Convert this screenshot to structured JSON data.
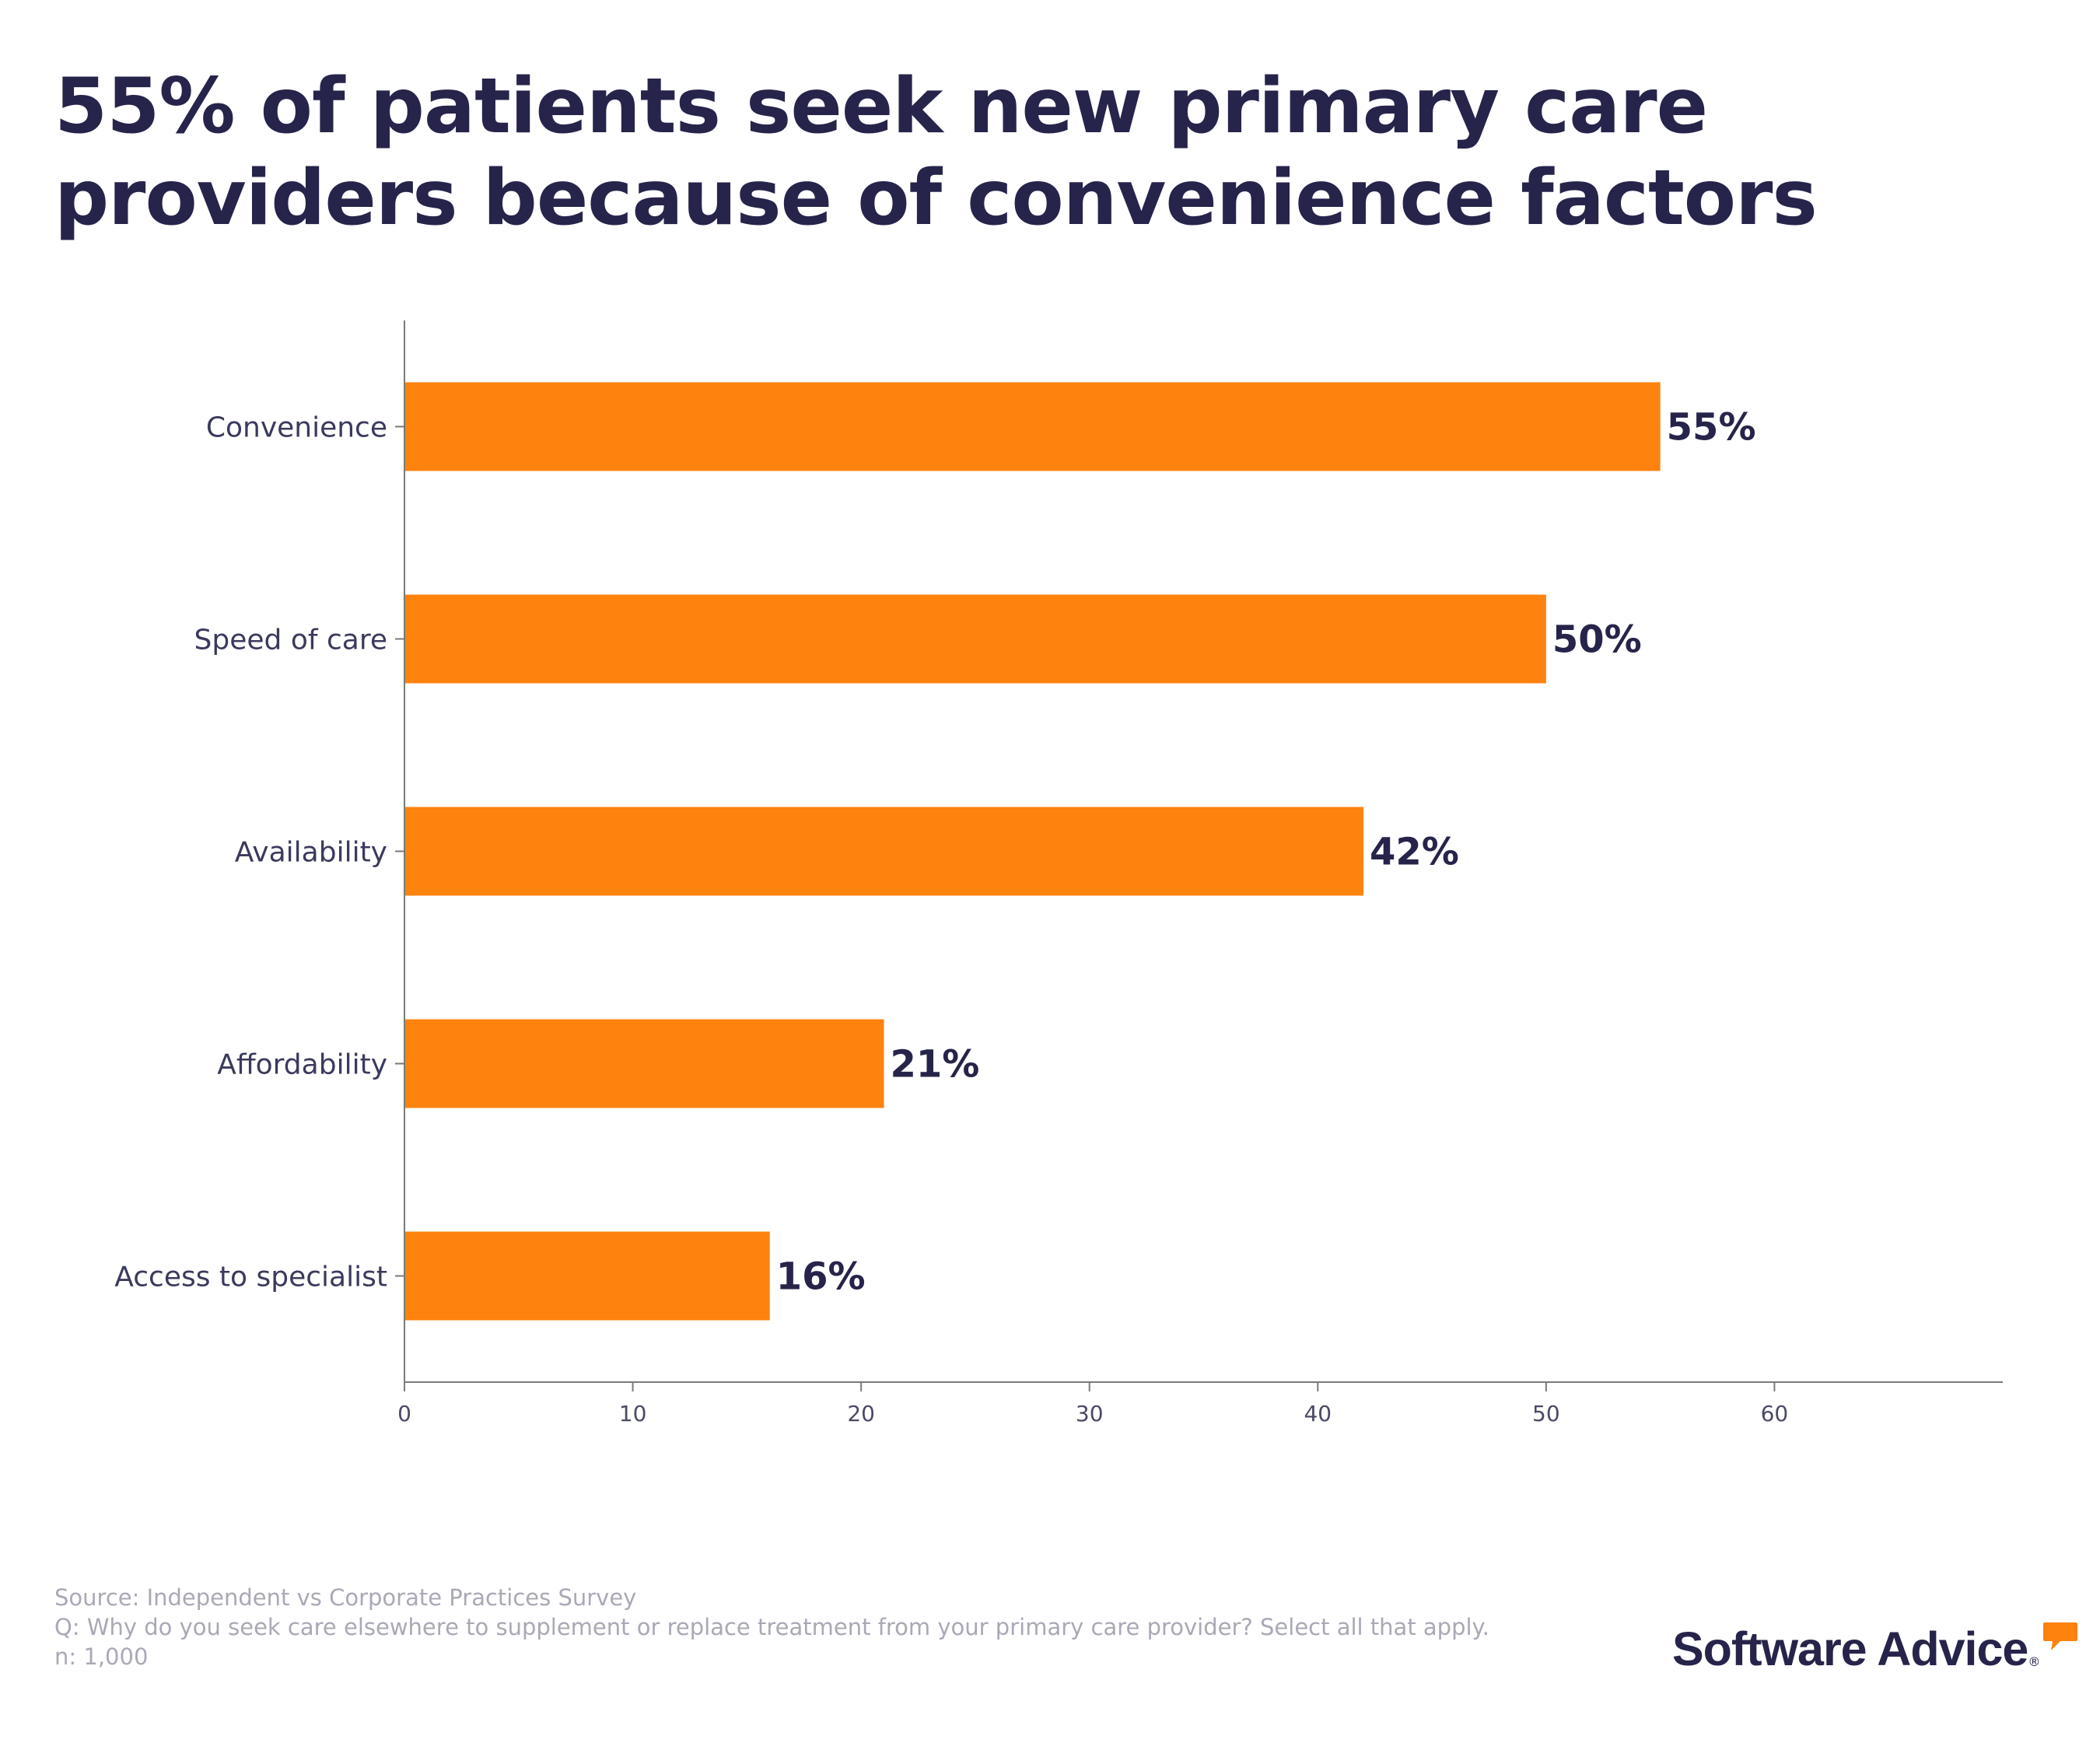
{
  "title": "55% of patients seek new primary care providers because of convenience factors",
  "chart_data": {
    "type": "bar",
    "orientation": "horizontal",
    "categories": [
      "Convenience",
      "Speed of care",
      "Availability",
      "Affordability",
      "Access to specialist"
    ],
    "values": [
      55,
      50,
      42,
      21,
      16
    ],
    "data_labels": [
      "55%",
      "50%",
      "42%",
      "21%",
      "16%"
    ],
    "xlim": [
      0,
      70
    ],
    "xticks": [
      0,
      10,
      20,
      30,
      40,
      50,
      60
    ],
    "title": "55% of patients seek new primary care providers because of convenience factors",
    "xlabel": "",
    "ylabel": "",
    "grid": false,
    "bar_color": "#fd820e"
  },
  "footer": {
    "source": "Source: Independent vs Corporate Practices Survey",
    "question": "Q: Why do you seek care elsewhere to supplement or replace treatment from your primary care provider? Select all that apply.",
    "n": "n: 1,000"
  },
  "logo": {
    "text": "Software Advice",
    "registered": "®",
    "bubble_color": "#fd820e"
  },
  "colors": {
    "title": "#26244a",
    "axis": "#7a7a7a",
    "footer": "#a9a9b6"
  }
}
